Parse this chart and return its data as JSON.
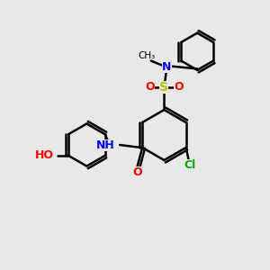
{
  "bg_color": "#e8e8e8",
  "bond_color": "#000000",
  "bond_width": 1.8,
  "atom_colors": {
    "O": "#ff0000",
    "N": "#0000ff",
    "S": "#bbbb00",
    "Cl": "#00aa00",
    "C": "#000000"
  },
  "font_size": 9,
  "fig_size": [
    3.0,
    3.0
  ],
  "dpi": 100,
  "xlim": [
    0,
    10
  ],
  "ylim": [
    0,
    10
  ]
}
